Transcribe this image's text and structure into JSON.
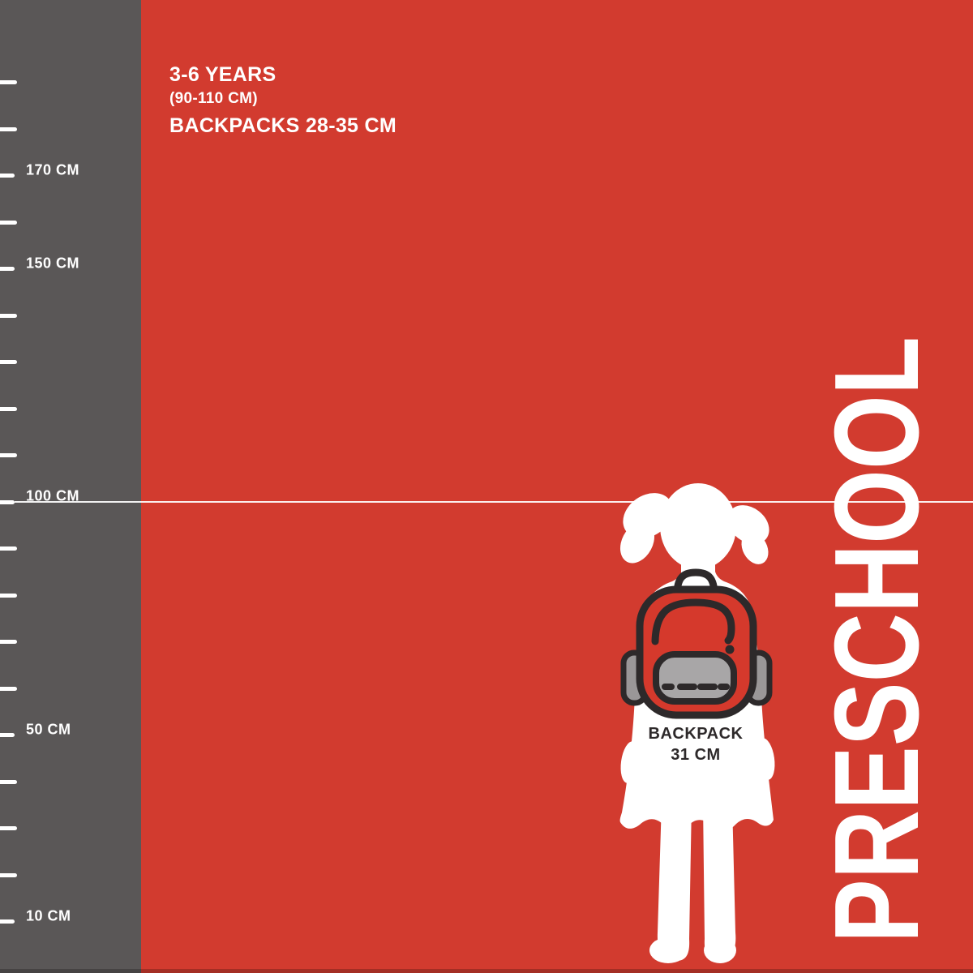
{
  "theme": {
    "bg_red": "#d23b2f",
    "bp_red": "#d5392c",
    "panel_gray": "#5a5757",
    "white": "#ffffff",
    "ink": "#2d292a",
    "pocket_gray": "#a8a6a7",
    "tab_gray": "#9a9798"
  },
  "header": {
    "age_range": "3-6 YEARS",
    "height_range": "(90-110 CM)",
    "backpack_range": "BACKPACKS 28-35 CM"
  },
  "ruler": {
    "unit": "CM",
    "reference_line_cm": 100,
    "ticks": [
      {
        "cm": 190
      },
      {
        "cm": 180
      },
      {
        "cm": 170,
        "label": "170 CM"
      },
      {
        "cm": 160
      },
      {
        "cm": 150,
        "label": "150 CM"
      },
      {
        "cm": 140
      },
      {
        "cm": 130
      },
      {
        "cm": 120
      },
      {
        "cm": 110
      },
      {
        "cm": 100,
        "label": "100 CM"
      },
      {
        "cm": 90
      },
      {
        "cm": 80
      },
      {
        "cm": 70
      },
      {
        "cm": 60
      },
      {
        "cm": 50,
        "label": "50 CM"
      },
      {
        "cm": 40
      },
      {
        "cm": 30
      },
      {
        "cm": 20
      },
      {
        "cm": 10,
        "label": "10 CM"
      }
    ]
  },
  "figure": {
    "label_line1": "BACKPACK",
    "label_line2": "31 CM",
    "girl_icon": "girl-silhouette",
    "backpack_icon": "backpack-icon"
  },
  "side_label": "PRESCHOOL"
}
